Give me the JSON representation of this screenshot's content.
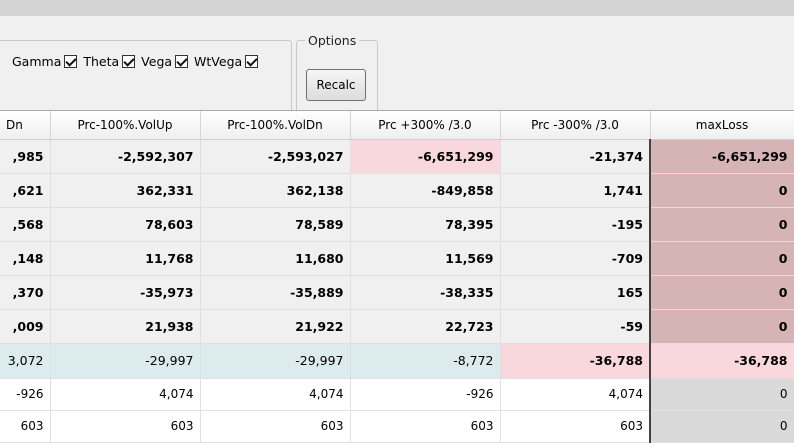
{
  "toolbar": {
    "greeks": [
      {
        "label": "Gamma",
        "checked": true
      },
      {
        "label": "Theta",
        "checked": true
      },
      {
        "label": "Vega",
        "checked": true
      },
      {
        "label": "WtVega",
        "checked": true
      }
    ],
    "options_title": "Options",
    "recalc_label": "Recalc"
  },
  "grid": {
    "columns": [
      "Dn",
      "Prc-100%.VolUp",
      "Prc-100%.VolDn",
      "Prc +300% /3.0",
      "Prc -300% /3.0",
      "maxLoss"
    ],
    "rows": [
      {
        "cells": [
          ",985",
          "-2,592,307",
          "-2,593,027",
          "-6,651,299",
          "-21,374",
          "-6,651,299"
        ]
      },
      {
        "cells": [
          ",621",
          "362,331",
          "362,138",
          "-849,858",
          "1,741",
          "0"
        ]
      },
      {
        "cells": [
          ",568",
          "78,603",
          "78,589",
          "78,395",
          "-195",
          "0"
        ]
      },
      {
        "cells": [
          ",148",
          "11,768",
          "11,680",
          "11,569",
          "-709",
          "0"
        ]
      },
      {
        "cells": [
          ",370",
          "-35,973",
          "-35,889",
          "-38,335",
          "165",
          "0"
        ]
      },
      {
        "cells": [
          ",009",
          "21,938",
          "21,922",
          "22,723",
          "-59",
          "0"
        ]
      },
      {
        "cells": [
          "3,072",
          "-29,997",
          "-29,997",
          "-8,772",
          "-36,788",
          "-36,788"
        ]
      },
      {
        "cells": [
          "-926",
          "4,074",
          "4,074",
          "-926",
          "4,074",
          "0"
        ]
      },
      {
        "cells": [
          "603",
          "603",
          "603",
          "603",
          "603",
          "0"
        ]
      }
    ]
  },
  "colors": {
    "highlight_pink": "#f8d8dc",
    "maxloss_bold": "#d6b3b5",
    "total_row_blue": "#dcebee"
  }
}
